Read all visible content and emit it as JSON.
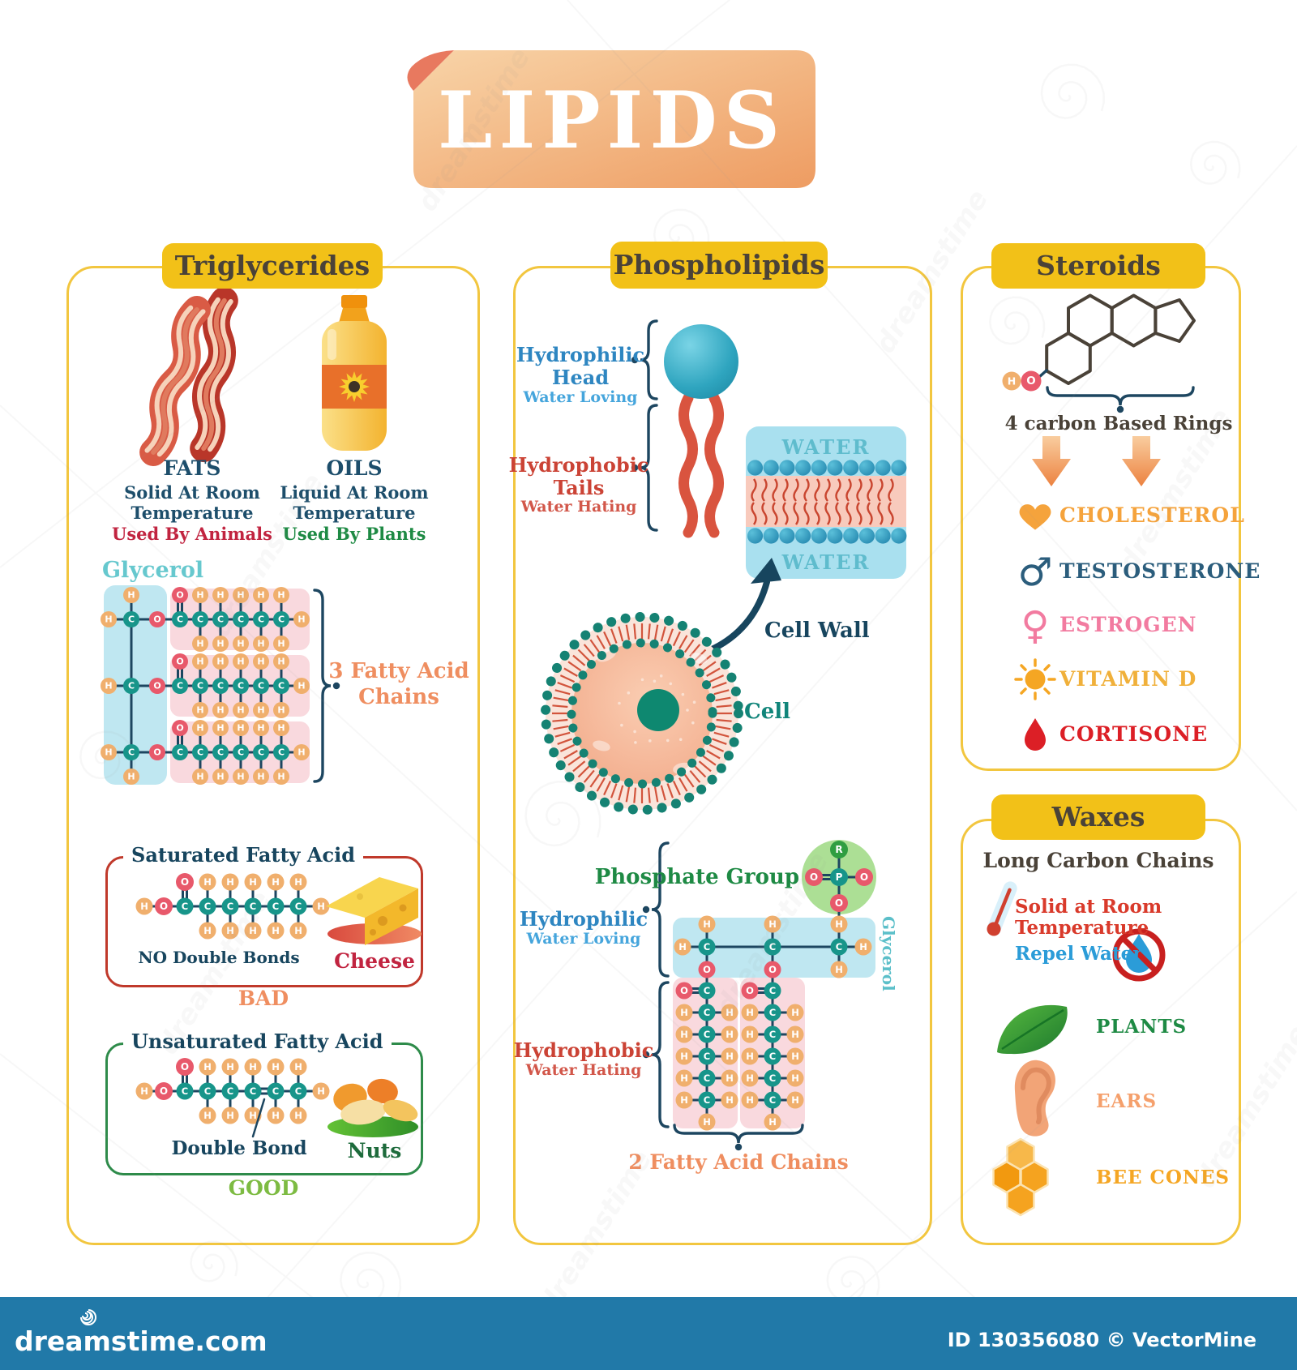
{
  "title": "LIPIDS",
  "brand": {
    "watermark": "dreamstime",
    "footer_left": "dreamstime.com",
    "footer_right": "ID 130356080 © VectorMine"
  },
  "atoms": {
    "C": "C",
    "H": "H",
    "O": "O",
    "P": "P",
    "R": "R"
  },
  "colors": {
    "yellow": "#F2C118",
    "header_text": "#4A4238",
    "border": "#F2C63F",
    "navy": "#1D4E6B",
    "bond": "#1D4660",
    "carbon": "#17958A",
    "hydrogen": "#F0AF6D",
    "oxygen": "#E8596B",
    "r_group": "#2F9E41",
    "pink_band": "#F9D9DE",
    "blue_band": "#BFE7F1",
    "orange_label": "#EF8E60",
    "red": "#C12440",
    "green": "#1E8A44",
    "hydrophilic_blue": "#2E86C1",
    "hydrophilic_light": "#45A5DC",
    "hydrophobic_red": "#CB4335",
    "hydrophobic_light": "#D2574A",
    "tail_red": "#D9543F",
    "membrane_teal": "#158273",
    "footer_blue": "#2179A8"
  },
  "triglycerides": {
    "header": "Triglycerides",
    "fats_label": "FATS",
    "fats_line1": "Solid At Room",
    "fats_line2": "Temperature",
    "fats_line3": "Used By Animals",
    "oils_label": "OILS",
    "oils_line1": "Liquid At Room",
    "oils_line2": "Temperature",
    "oils_line3": "Used By Plants",
    "glycerol_label": "Glycerol",
    "chains_label_line1": "3 Fatty Acid",
    "chains_label_line2": "Chains",
    "saturated_title": "Saturated Fatty Acid",
    "saturated_note": "NO Double Bonds",
    "saturated_food": "Cheese",
    "saturated_verdict": "BAD",
    "unsaturated_title": "Unsaturated Fatty Acid",
    "unsaturated_note": "Double Bond",
    "unsaturated_food": "Nuts",
    "unsaturated_verdict": "GOOD"
  },
  "phospholipids": {
    "header": "Phospholipids",
    "hydrophilic_title": "Hydrophilic",
    "hydrophilic_sub": "Head",
    "hydrophilic_desc": "Water Loving",
    "hydrophobic_title": "Hydrophobic",
    "hydrophobic_sub": "Tails",
    "hydrophobic_desc": "Water Hating",
    "water_top": "WATER",
    "water_bottom": "WATER",
    "cell_wall_label": "Cell Wall",
    "cell_label": "Cell",
    "phosphate_label": "Phosphate Group",
    "glycerol_label": "Glycerol",
    "hydrophilic2_title": "Hydrophilic",
    "hydrophilic2_desc": "Water Loving",
    "hydrophobic2_title": "Hydrophobic",
    "hydrophobic2_desc": "Water Hating",
    "chains_label": "2 Fatty Acid Chains"
  },
  "steroids": {
    "header": "Steroids",
    "rings_label": "4 carbon Based Rings",
    "items": [
      {
        "label": "CHOLESTEROL",
        "color": "#F5A33C",
        "icon": "heart-icon"
      },
      {
        "label": "TESTOSTERONE",
        "color": "#2B5D7C",
        "icon": "male-icon"
      },
      {
        "label": "ESTROGEN",
        "color": "#F27BA0",
        "icon": "female-icon"
      },
      {
        "label": "VITAMIN D",
        "color": "#F0B03A",
        "icon": "sun-icon"
      },
      {
        "label": "CORTISONE",
        "color": "#DC1F26",
        "icon": "drop-icon"
      }
    ]
  },
  "waxes": {
    "header": "Waxes",
    "intro": "Long Carbon Chains",
    "items": [
      {
        "label": "Solid at Room Temperature",
        "color": "#D93A2B",
        "icon": "thermometer-icon"
      },
      {
        "label": "Repel Water",
        "color": "#2B9CD8",
        "icon": "no-water-icon"
      },
      {
        "label": "PLANTS",
        "color": "#1E8A44",
        "icon": "leaf-icon"
      },
      {
        "label": "EARS",
        "color": "#F5A06C",
        "icon": "ear-icon"
      },
      {
        "label": "BEE CONES",
        "color": "#F5A623",
        "icon": "honeycomb-icon"
      }
    ]
  }
}
